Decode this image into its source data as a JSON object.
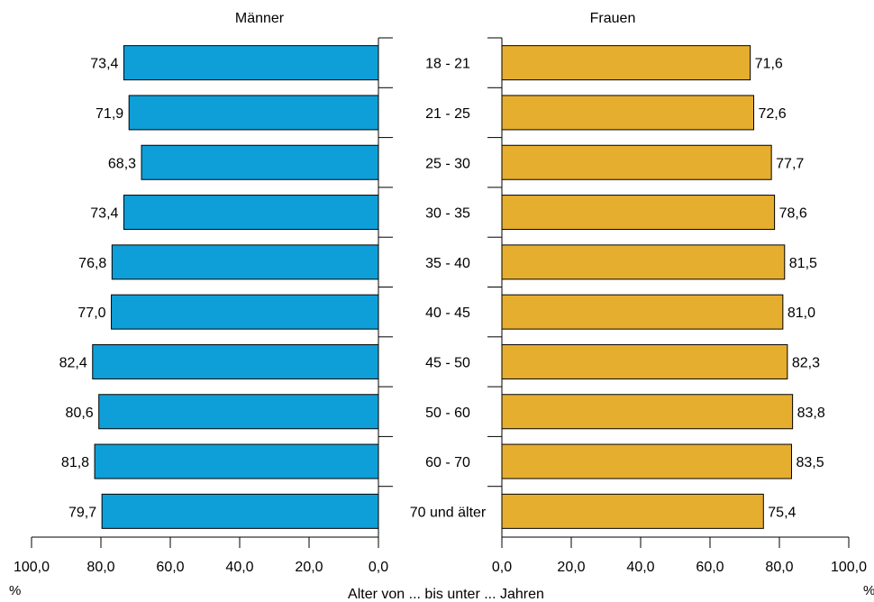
{
  "chart_data": {
    "type": "bar",
    "orientation": "horizontal-butterfly",
    "categories": [
      "18 - 21",
      "21 - 25",
      "25 - 30",
      "30 - 35",
      "35 - 40",
      "40 - 45",
      "45 - 50",
      "50 - 60",
      "60 - 70",
      "70 und älter"
    ],
    "series": [
      {
        "name": "Männer",
        "color": "#0e9fd8",
        "values": [
          73.4,
          71.9,
          68.3,
          73.4,
          76.8,
          77.0,
          82.4,
          80.6,
          81.8,
          79.7
        ],
        "value_labels": [
          "73,4",
          "71,9",
          "68,3",
          "73,4",
          "76,8",
          "77,0",
          "82,4",
          "80,6",
          "81,8",
          "79,7"
        ]
      },
      {
        "name": "Frauen",
        "color": "#e6ae2f",
        "values": [
          71.6,
          72.6,
          77.7,
          78.6,
          81.5,
          81.0,
          82.3,
          83.8,
          83.5,
          75.4
        ],
        "value_labels": [
          "71,6",
          "72,6",
          "77,7",
          "78,6",
          "81,5",
          "81,0",
          "82,3",
          "83,8",
          "83,5",
          "75,4"
        ]
      }
    ],
    "xlim": [
      0,
      100
    ],
    "left_axis_ticks": [
      "100,0",
      "80,0",
      "60,0",
      "40,0",
      "20,0",
      "0,0"
    ],
    "right_axis_ticks": [
      "0,0",
      "20,0",
      "40,0",
      "60,0",
      "80,0",
      "100,0"
    ],
    "unit_label": "%",
    "xlabel": "Alter von ... bis unter ... Jahren",
    "grid": false,
    "legend": "none"
  }
}
